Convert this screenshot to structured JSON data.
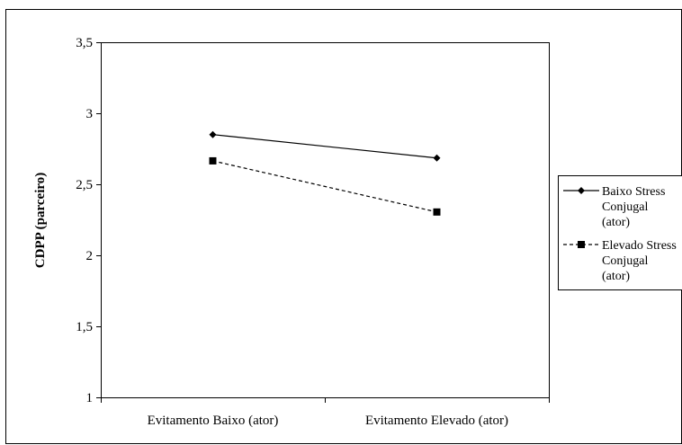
{
  "chart_data": {
    "type": "line",
    "categories": [
      "Evitamento Baixo (ator)",
      "Evitamento Elevado (ator)"
    ],
    "series": [
      {
        "name_lines": [
          "Baixo Stress",
          "Conjugal",
          "(ator)"
        ],
        "values": [
          2.85,
          2.685
        ],
        "marker": "diamond",
        "line_style": "solid"
      },
      {
        "name_lines": [
          "Elevado Stress",
          "Conjugal",
          "(ator)"
        ],
        "values": [
          2.665,
          2.305
        ],
        "marker": "square",
        "line_style": "dashed"
      }
    ],
    "ylabel": "CDPP (parceiro)",
    "ylim": [
      1,
      3.5
    ],
    "yticks": [
      "1",
      "1,5",
      "2",
      "2,5",
      "3",
      "3,5"
    ],
    "grid": false,
    "legend": "right",
    "colors": {
      "line": "#000000",
      "background": "#ffffff"
    }
  }
}
